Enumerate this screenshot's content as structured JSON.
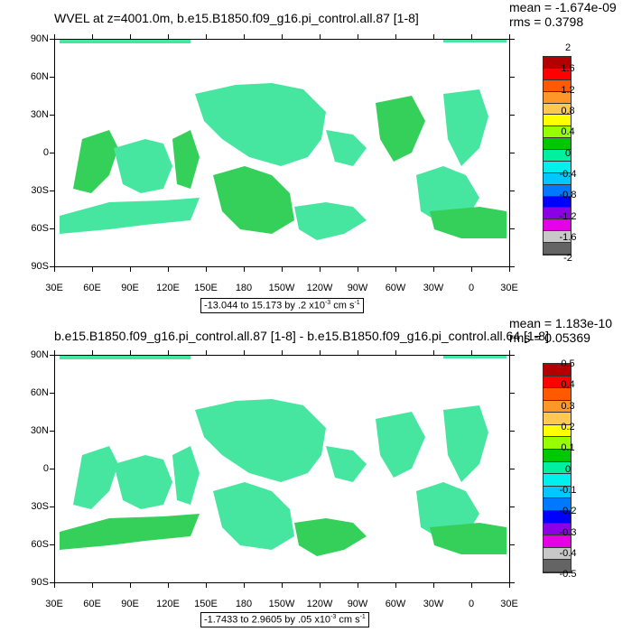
{
  "panels": [
    {
      "title": "WVEL at z=4001.0m, b.e15.B1850.f09_g16.pi_control.all.87 [1-8]",
      "mean_text": "mean = -1.674e-09",
      "rms_text": "rms = 0.3798",
      "range_text": "-13.044 to 15.173 by .2 x10",
      "range_exp": "-3",
      "range_unit": " cm s",
      "range_unit_exp": "-1",
      "legend_labels": [
        "2",
        "1.6",
        "1.2",
        "0.8",
        "0.4",
        "0",
        "-0.4",
        "-0.8",
        "-1.2",
        "-1.6",
        "-2"
      ]
    },
    {
      "title": "b.e15.B1850.f09_g16.pi_control.all.87 [1-8] - b.e15.B1850.f09_g16.pi_control.all.64 [1-8]",
      "mean_text": "mean = 1.183e-10",
      "rms_text": "rms = 0.05369",
      "range_text": "-1.7433 to 2.9605 by .05 x10",
      "range_exp": "-3",
      "range_unit": " cm s",
      "range_unit_exp": "-1",
      "legend_labels": [
        "0.5",
        "0.4",
        "0.3",
        "0.2",
        "0.1",
        "0",
        "-0.1",
        "-0.2",
        "-0.3",
        "-0.4",
        "-0.5"
      ]
    }
  ],
  "axes": {
    "lat_labels": [
      "90N",
      "60N",
      "30N",
      "0",
      "30S",
      "60S",
      "90S"
    ],
    "lon_labels": [
      "30E",
      "60E",
      "90E",
      "120E",
      "150E",
      "180",
      "150W",
      "120W",
      "90W",
      "60W",
      "30W",
      "0",
      "30E"
    ]
  },
  "colors": {
    "legend_swatches": [
      "#b40000",
      "#ff0000",
      "#ff5a00",
      "#ff9628",
      "#ffc850",
      "#ffff00",
      "#96ff00",
      "#00c800",
      "#00f0a0",
      "#00f0f0",
      "#00c8ff",
      "#0078ff",
      "#0000ff",
      "#8c00e6",
      "#e600e6",
      "#c8c8c8",
      "#646464"
    ],
    "field_main": "#46e6a0",
    "field_alt": "#34d05a"
  }
}
